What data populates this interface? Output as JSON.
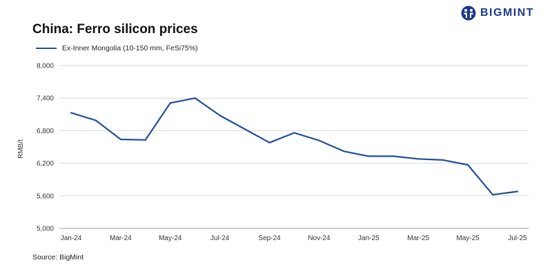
{
  "header": {
    "title": "China: Ferro silicon prices",
    "brand": "BIGMINT",
    "brand_color": "#1b3a8c"
  },
  "footer": {
    "source": "Source: BigMint"
  },
  "chart_data": {
    "type": "line",
    "title": "China: Ferro silicon prices",
    "xlabel": "",
    "ylabel": "RMB/t",
    "ylim": [
      5000,
      8000
    ],
    "yticks": [
      5000,
      5600,
      6200,
      6800,
      7400,
      8000
    ],
    "ytick_labels": [
      "5,000",
      "5,600",
      "6,200",
      "6,800",
      "7,400",
      "8,000"
    ],
    "x": [
      "Jan-24",
      "Feb-24",
      "Mar-24",
      "Apr-24",
      "May-24",
      "Jun-24",
      "Jul-24",
      "Aug-24",
      "Sep-24",
      "Oct-24",
      "Nov-24",
      "Dec-24",
      "Jan-25",
      "Feb-25",
      "Mar-25",
      "Apr-25",
      "May-25",
      "Jun-25",
      "Jul-25"
    ],
    "x_tick_labels": [
      "Jan-24",
      "",
      "Mar-24",
      "",
      "May-24",
      "",
      "Jul-24",
      "",
      "Sep-24",
      "",
      "Nov-24",
      "",
      "Jan-25",
      "",
      "Mar-25",
      "",
      "May-25",
      "",
      "Jul-25"
    ],
    "grid": true,
    "legend_position": "top-left",
    "series": [
      {
        "name": "Ex-Inner Mongolia (10-150 mm, FeSi75%)",
        "color": "#1f4e9c",
        "values": [
          7130,
          6990,
          6640,
          6630,
          7310,
          7400,
          7080,
          6830,
          6580,
          6760,
          6620,
          6420,
          6330,
          6330,
          6280,
          6260,
          6170,
          5620,
          5680
        ]
      }
    ]
  }
}
